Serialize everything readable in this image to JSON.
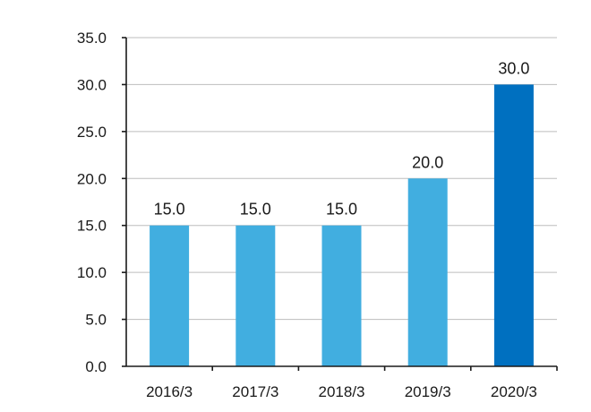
{
  "chart_data": {
    "type": "bar",
    "categories": [
      "2016/3",
      "2017/3",
      "2018/3",
      "2019/3",
      "2020/3"
    ],
    "values": [
      15.0,
      15.0,
      15.0,
      20.0,
      30.0
    ],
    "data_labels": [
      "15.0",
      "15.0",
      "15.0",
      "20.0",
      "30.0"
    ],
    "ylim": [
      0,
      35
    ],
    "yticks": [
      0,
      5,
      10,
      15,
      20,
      25,
      30,
      35
    ],
    "ytick_labels": [
      "0.0",
      "5.0",
      "10.0",
      "15.0",
      "20.0",
      "25.0",
      "30.0",
      "35.0"
    ],
    "grid": true,
    "legend": "none",
    "colors": {
      "bar": "#41aee0",
      "highlight": "#0070c0",
      "highlight_index": 4,
      "grid": "#bdbdbd",
      "axis": "#1a1a1a"
    }
  }
}
